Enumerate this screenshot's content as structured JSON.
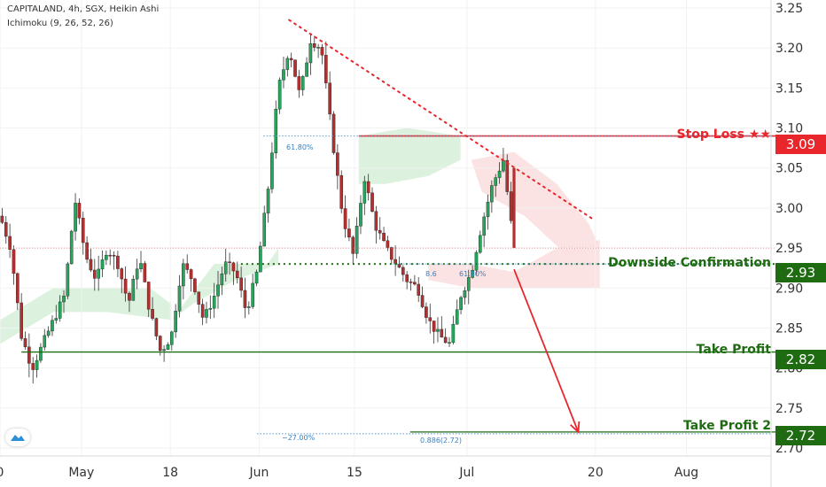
{
  "header": {
    "title": "CAPITALAND, 4h, SGX, Heikin Ashi",
    "indicator": "Ichimoku (9, 26, 52, 26)"
  },
  "levels": {
    "stop_loss": {
      "label": "Stop Loss ★★",
      "value": "3.09",
      "price": 3.09,
      "color": "#e8262b"
    },
    "confirmation": {
      "label": "Downside Confirmation",
      "value": "2.93",
      "price": 2.93,
      "color": "#1e6b12"
    },
    "take_profit": {
      "label": "Take Profit",
      "value": "2.82",
      "price": 2.82,
      "color": "#1e6b12"
    },
    "take_profit_2": {
      "label": "Take Profit 2",
      "value": "2.72",
      "price": 2.72,
      "color": "#1e6b12"
    }
  },
  "fib_labels": {
    "upper": "61.80%",
    "mid_a": "8.6",
    "mid_b": "61.80%",
    "low_a": "−27.00%",
    "low_b": "0.886(2.72)"
  },
  "chart_data": {
    "type": "candlestick",
    "ylim": [
      2.69,
      3.26
    ],
    "xlim_days": [
      0,
      72
    ],
    "y_ticks": [
      2.7,
      2.75,
      2.8,
      2.85,
      2.9,
      2.95,
      3.0,
      3.05,
      3.1,
      3.15,
      3.2,
      3.25
    ],
    "y_tick_labels": [
      "2.70",
      "2.75",
      "2.80",
      "2.85",
      "2.90",
      "2.95",
      "3.00",
      "3.05",
      "3.10",
      "3.15",
      "3.20",
      "3.25"
    ],
    "x_ticks": [
      {
        "label": "0",
        "day": 0
      },
      {
        "label": "May",
        "day": 7.6
      },
      {
        "label": "18",
        "day": 15.9
      },
      {
        "label": "Jun",
        "day": 24.2
      },
      {
        "label": "15",
        "day": 33.1
      },
      {
        "label": "Jul",
        "day": 43.6
      },
      {
        "label": "20",
        "day": 55.6
      },
      {
        "label": "Aug",
        "day": 64.1
      }
    ],
    "up_color": "#26a65b",
    "down_color": "#b52f2f",
    "key_points": [
      [
        0,
        2.99
      ],
      [
        1,
        2.95
      ],
      [
        2,
        2.84
      ],
      [
        3,
        2.8
      ],
      [
        4,
        2.83
      ],
      [
        5,
        2.86
      ],
      [
        6,
        2.89
      ],
      [
        7,
        3.01
      ],
      [
        8,
        2.94
      ],
      [
        9,
        2.91
      ],
      [
        10,
        2.95
      ],
      [
        11,
        2.93
      ],
      [
        12,
        2.88
      ],
      [
        13,
        2.94
      ],
      [
        14,
        2.87
      ],
      [
        15,
        2.82
      ],
      [
        16,
        2.84
      ],
      [
        17,
        2.93
      ],
      [
        18,
        2.91
      ],
      [
        19,
        2.86
      ],
      [
        20,
        2.89
      ],
      [
        21,
        2.93
      ],
      [
        22,
        2.92
      ],
      [
        23,
        2.87
      ],
      [
        24,
        2.92
      ],
      [
        25,
        3.02
      ],
      [
        26,
        3.15
      ],
      [
        27,
        3.2
      ],
      [
        28,
        3.14
      ],
      [
        29,
        3.21
      ],
      [
        30,
        3.2
      ],
      [
        31,
        3.09
      ],
      [
        32,
        2.99
      ],
      [
        33,
        2.94
      ],
      [
        34,
        3.04
      ],
      [
        35,
        2.98
      ],
      [
        36,
        2.95
      ],
      [
        37,
        2.93
      ],
      [
        38,
        2.91
      ],
      [
        39,
        2.9
      ],
      [
        40,
        2.86
      ],
      [
        41,
        2.84
      ],
      [
        42,
        2.83
      ],
      [
        43,
        2.89
      ],
      [
        44,
        2.92
      ],
      [
        45,
        2.98
      ],
      [
        46,
        3.03
      ],
      [
        47,
        3.06
      ],
      [
        48,
        2.95
      ]
    ],
    "trendline": {
      "from": [
        27.0,
        3.235
      ],
      "to": [
        55.5,
        2.985
      ]
    },
    "arrow": {
      "from": [
        48.0,
        2.93
      ],
      "to": [
        54.0,
        2.72
      ]
    },
    "fib_lines": [
      {
        "price": 3.09,
        "from_day": 24.6,
        "to_day": 72
      },
      {
        "price": 2.93,
        "from_day": 36.5,
        "to_day": 72
      },
      {
        "price": 2.72,
        "from_day": 24.0,
        "to_day": 72
      }
    ],
    "thin_red_line_price": 2.95
  }
}
